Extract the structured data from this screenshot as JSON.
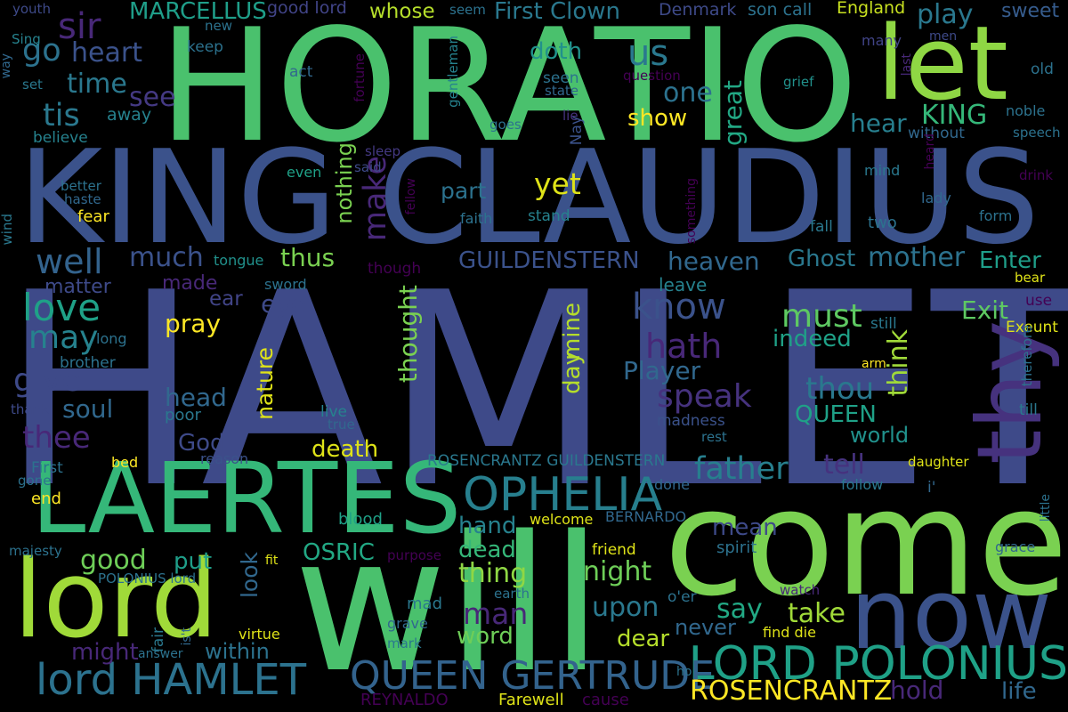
{
  "words": [
    {
      "text": "HAMLET",
      "color": "#3e4a89",
      "vertical": false
    },
    {
      "text": "HORATIO",
      "color": "#4ac16d",
      "vertical": false
    },
    {
      "text": "KING CLAUDIUS",
      "color": "#3b528b",
      "vertical": false
    },
    {
      "text": "will",
      "color": "#4ac16d",
      "vertical": false
    },
    {
      "text": "come",
      "color": "#7ad151",
      "vertical": false
    },
    {
      "text": "LAERTES",
      "color": "#35b779",
      "vertical": false
    },
    {
      "text": "lord",
      "color": "#a0da39",
      "vertical": false
    },
    {
      "text": "now",
      "color": "#3b528b",
      "vertical": false
    },
    {
      "text": "let",
      "color": "#8fd744",
      "vertical": false
    },
    {
      "text": "thy",
      "color": "#46327e",
      "vertical": true
    },
    {
      "text": "OPHELIA",
      "color": "#277f8e",
      "vertical": false
    },
    {
      "text": "LORD POLONIUS",
      "color": "#1fa187",
      "vertical": false
    },
    {
      "text": "lord HAMLET",
      "color": "#2c728e",
      "vertical": false
    },
    {
      "text": "QUEEN GERTRUDE",
      "color": "#33638d",
      "vertical": false
    },
    {
      "text": "ROSENCRANTZ",
      "color": "#fde725",
      "vertical": false
    },
    {
      "text": "GUILDENSTERN",
      "color": "#3b528b",
      "vertical": false
    },
    {
      "text": "ROSENCRANTZ GUILDENSTERN",
      "color": "#2a788e",
      "vertical": false
    },
    {
      "text": "MARCELLUS",
      "color": "#1f9e89",
      "vertical": false
    },
    {
      "text": "First Clown",
      "color": "#2a788e",
      "vertical": false
    },
    {
      "text": "good lord",
      "color": "#414487",
      "vertical": false
    },
    {
      "text": "whose",
      "color": "#b5de2b",
      "vertical": false
    },
    {
      "text": "Denmark",
      "color": "#3e4a89",
      "vertical": false
    },
    {
      "text": "son call",
      "color": "#2c728e",
      "vertical": false
    },
    {
      "text": "England",
      "color": "#c8e020",
      "vertical": false
    },
    {
      "text": "play",
      "color": "#2a788e",
      "vertical": false
    },
    {
      "text": "sweet",
      "color": "#365c8d",
      "vertical": false
    },
    {
      "text": "sir",
      "color": "#482878",
      "vertical": false
    },
    {
      "text": "go",
      "color": "#2c728e",
      "vertical": false
    },
    {
      "text": "heart",
      "color": "#3b528b",
      "vertical": false
    },
    {
      "text": "us",
      "color": "#2a788e",
      "vertical": false
    },
    {
      "text": "doth",
      "color": "#21918c",
      "vertical": false
    },
    {
      "text": "time",
      "color": "#2a788e",
      "vertical": false
    },
    {
      "text": "see",
      "color": "#443983",
      "vertical": false
    },
    {
      "text": "one",
      "color": "#2c728e",
      "vertical": false
    },
    {
      "text": "tis",
      "color": "#2a788e",
      "vertical": false
    },
    {
      "text": "great",
      "color": "#22a884",
      "vertical": true
    },
    {
      "text": "show",
      "color": "#fde725",
      "vertical": false
    },
    {
      "text": "KING",
      "color": "#35b779",
      "vertical": false
    },
    {
      "text": "hear",
      "color": "#277f8e",
      "vertical": false
    },
    {
      "text": "yet",
      "color": "#dfe318",
      "vertical": false
    },
    {
      "text": "make",
      "color": "#482878",
      "vertical": true
    },
    {
      "text": "part",
      "color": "#2c728e",
      "vertical": false
    },
    {
      "text": "well",
      "color": "#33638d",
      "vertical": false
    },
    {
      "text": "much",
      "color": "#3b528b",
      "vertical": false
    },
    {
      "text": "thus",
      "color": "#7ad151",
      "vertical": false
    },
    {
      "text": "heaven",
      "color": "#31688e",
      "vertical": false
    },
    {
      "text": "Ghost",
      "color": "#2a788e",
      "vertical": false
    },
    {
      "text": "mother",
      "color": "#2c728e",
      "vertical": false
    },
    {
      "text": "Enter",
      "color": "#1f9e89",
      "vertical": false
    },
    {
      "text": "love",
      "color": "#1fa187",
      "vertical": false
    },
    {
      "text": "matter",
      "color": "#3e4a89",
      "vertical": false
    },
    {
      "text": "made",
      "color": "#482878",
      "vertical": false
    },
    {
      "text": "ear",
      "color": "#414487",
      "vertical": false
    },
    {
      "text": "eye",
      "color": "#3e4a89",
      "vertical": false
    },
    {
      "text": "know",
      "color": "#3b528b",
      "vertical": false
    },
    {
      "text": "must",
      "color": "#5ec962",
      "vertical": false
    },
    {
      "text": "indeed",
      "color": "#1fa187",
      "vertical": false
    },
    {
      "text": "Exit",
      "color": "#5ec962",
      "vertical": false
    },
    {
      "text": "may",
      "color": "#26828e",
      "vertical": false
    },
    {
      "text": "pray",
      "color": "#fde725",
      "vertical": false
    },
    {
      "text": "hath",
      "color": "#482878",
      "vertical": false
    },
    {
      "text": "Player",
      "color": "#31688e",
      "vertical": false
    },
    {
      "text": "give",
      "color": "#3e4a89",
      "vertical": false
    },
    {
      "text": "speak",
      "color": "#46327e",
      "vertical": false
    },
    {
      "text": "thou",
      "color": "#2a788e",
      "vertical": false
    },
    {
      "text": "think",
      "color": "#a0da39",
      "vertical": true
    },
    {
      "text": "soul",
      "color": "#31688e",
      "vertical": false
    },
    {
      "text": "head",
      "color": "#31688e",
      "vertical": false
    },
    {
      "text": "QUEEN",
      "color": "#1fa187",
      "vertical": false
    },
    {
      "text": "thee",
      "color": "#482878",
      "vertical": false
    },
    {
      "text": "God",
      "color": "#3e4a89",
      "vertical": false
    },
    {
      "text": "death",
      "color": "#dfe318",
      "vertical": false
    },
    {
      "text": "world",
      "color": "#21918c",
      "vertical": false
    },
    {
      "text": "tell",
      "color": "#46327e",
      "vertical": false
    },
    {
      "text": "father",
      "color": "#277f8e",
      "vertical": false
    },
    {
      "text": "thought",
      "color": "#7ad151",
      "vertical": true
    },
    {
      "text": "nature",
      "color": "#dfe318",
      "vertical": true
    },
    {
      "text": "day",
      "color": "#b5de2b",
      "vertical": true
    },
    {
      "text": "mine",
      "color": "#b5de2b",
      "vertical": true
    },
    {
      "text": "nothing",
      "color": "#7ad151",
      "vertical": true
    },
    {
      "text": "hand",
      "color": "#26828e",
      "vertical": false
    },
    {
      "text": "mean",
      "color": "#3e4a89",
      "vertical": false
    },
    {
      "text": "dead",
      "color": "#35b779",
      "vertical": false
    },
    {
      "text": "good",
      "color": "#6ece58",
      "vertical": false
    },
    {
      "text": "put",
      "color": "#1f9e89",
      "vertical": false
    },
    {
      "text": "OSRIC",
      "color": "#22a884",
      "vertical": false
    },
    {
      "text": "thing",
      "color": "#8fd744",
      "vertical": false
    },
    {
      "text": "night",
      "color": "#6ece58",
      "vertical": false
    },
    {
      "text": "say",
      "color": "#22a884",
      "vertical": false
    },
    {
      "text": "take",
      "color": "#a0da39",
      "vertical": false
    },
    {
      "text": "look",
      "color": "#31688e",
      "vertical": true
    },
    {
      "text": "man",
      "color": "#482878",
      "vertical": false
    },
    {
      "text": "upon",
      "color": "#2a788e",
      "vertical": false
    },
    {
      "text": "word",
      "color": "#6ece58",
      "vertical": false
    },
    {
      "text": "never",
      "color": "#31688e",
      "vertical": false
    },
    {
      "text": "dear",
      "color": "#b5de2b",
      "vertical": false
    },
    {
      "text": "might",
      "color": "#482878",
      "vertical": false
    },
    {
      "text": "within",
      "color": "#2c728e",
      "vertical": false
    },
    {
      "text": "hold",
      "color": "#482878",
      "vertical": false
    },
    {
      "text": "life",
      "color": "#31688e",
      "vertical": false
    },
    {
      "text": "REYNALDO",
      "color": "#440154",
      "vertical": false
    },
    {
      "text": "Farewell",
      "color": "#dfe318",
      "vertical": false
    },
    {
      "text": "cause",
      "color": "#440154",
      "vertical": false
    },
    {
      "text": "youth",
      "color": "#3e4a89",
      "vertical": false
    },
    {
      "text": "Sing",
      "color": "#26828e",
      "vertical": false
    },
    {
      "text": "way",
      "color": "#31688e",
      "vertical": true
    },
    {
      "text": "set",
      "color": "#2a788e",
      "vertical": false
    },
    {
      "text": "new",
      "color": "#2c728e",
      "vertical": false
    },
    {
      "text": "keep",
      "color": "#2c728e",
      "vertical": false
    },
    {
      "text": "act",
      "color": "#31688e",
      "vertical": false
    },
    {
      "text": "fortune",
      "color": "#440154",
      "vertical": true
    },
    {
      "text": "seem",
      "color": "#2c728e",
      "vertical": false
    },
    {
      "text": "gentleman",
      "color": "#26828e",
      "vertical": true
    },
    {
      "text": "question",
      "color": "#440154",
      "vertical": false
    },
    {
      "text": "seen",
      "color": "#2c728e",
      "vertical": false
    },
    {
      "text": "state",
      "color": "#31688e",
      "vertical": false
    },
    {
      "text": "many",
      "color": "#414487",
      "vertical": false
    },
    {
      "text": "men",
      "color": "#3e4a89",
      "vertical": false
    },
    {
      "text": "last",
      "color": "#482878",
      "vertical": true
    },
    {
      "text": "old",
      "color": "#2c728e",
      "vertical": false
    },
    {
      "text": "grief",
      "color": "#21918c",
      "vertical": false
    },
    {
      "text": "noble",
      "color": "#2c728e",
      "vertical": false
    },
    {
      "text": "away",
      "color": "#26828e",
      "vertical": false
    },
    {
      "text": "lie",
      "color": "#46327e",
      "vertical": false
    },
    {
      "text": "goes",
      "color": "#2c728e",
      "vertical": false
    },
    {
      "text": "believe",
      "color": "#26828e",
      "vertical": false
    },
    {
      "text": "sleep",
      "color": "#443983",
      "vertical": false
    },
    {
      "text": "said",
      "color": "#3e4a89",
      "vertical": false
    },
    {
      "text": "even",
      "color": "#1fa187",
      "vertical": false
    },
    {
      "text": "Nay",
      "color": "#3b528b",
      "vertical": true
    },
    {
      "text": "without",
      "color": "#31688e",
      "vertical": false
    },
    {
      "text": "speech",
      "color": "#2c728e",
      "vertical": false
    },
    {
      "text": "heard",
      "color": "#440154",
      "vertical": true
    },
    {
      "text": "mind",
      "color": "#2a788e",
      "vertical": false
    },
    {
      "text": "better",
      "color": "#2c728e",
      "vertical": false
    },
    {
      "text": "haste",
      "color": "#31688e",
      "vertical": false
    },
    {
      "text": "fear",
      "color": "#fde725",
      "vertical": false
    },
    {
      "text": "fellow",
      "color": "#440154",
      "vertical": true
    },
    {
      "text": "faith",
      "color": "#2c728e",
      "vertical": false
    },
    {
      "text": "stand",
      "color": "#26828e",
      "vertical": false
    },
    {
      "text": "something",
      "color": "#440154",
      "vertical": true
    },
    {
      "text": "lady",
      "color": "#31688e",
      "vertical": false
    },
    {
      "text": "drink",
      "color": "#440154",
      "vertical": false
    },
    {
      "text": "wind",
      "color": "#2a788e",
      "vertical": true
    },
    {
      "text": "fall",
      "color": "#2a788e",
      "vertical": false
    },
    {
      "text": "two",
      "color": "#2c728e",
      "vertical": false
    },
    {
      "text": "form",
      "color": "#2c728e",
      "vertical": false
    },
    {
      "text": "tongue",
      "color": "#21918c",
      "vertical": false
    },
    {
      "text": "sword",
      "color": "#2c728e",
      "vertical": false
    },
    {
      "text": "though",
      "color": "#440154",
      "vertical": false
    },
    {
      "text": "leave",
      "color": "#26828e",
      "vertical": false
    },
    {
      "text": "bear",
      "color": "#dfe318",
      "vertical": false
    },
    {
      "text": "use",
      "color": "#440154",
      "vertical": false
    },
    {
      "text": "still",
      "color": "#2a788e",
      "vertical": false
    },
    {
      "text": "Exeunt",
      "color": "#dfe318",
      "vertical": false
    },
    {
      "text": "long",
      "color": "#2c728e",
      "vertical": false
    },
    {
      "text": "brother",
      "color": "#2c728e",
      "vertical": false
    },
    {
      "text": "arm",
      "color": "#fde725",
      "vertical": false
    },
    {
      "text": "therefore",
      "color": "#2c728e",
      "vertical": true
    },
    {
      "text": "thank",
      "color": "#3e4a89",
      "vertical": false
    },
    {
      "text": "poor",
      "color": "#2a788e",
      "vertical": false
    },
    {
      "text": "live",
      "color": "#26828e",
      "vertical": false
    },
    {
      "text": "true",
      "color": "#31688e",
      "vertical": false
    },
    {
      "text": "madness",
      "color": "#3b528b",
      "vertical": false
    },
    {
      "text": "rest",
      "color": "#2c728e",
      "vertical": false
    },
    {
      "text": "till",
      "color": "#2a788e",
      "vertical": false
    },
    {
      "text": "bed",
      "color": "#fde725",
      "vertical": false
    },
    {
      "text": "reason",
      "color": "#3b528b",
      "vertical": false
    },
    {
      "text": "daughter",
      "color": "#dfe318",
      "vertical": false
    },
    {
      "text": "little",
      "color": "#2c728e",
      "vertical": true
    },
    {
      "text": "First",
      "color": "#2c728e",
      "vertical": false
    },
    {
      "text": "gone",
      "color": "#2c728e",
      "vertical": false
    },
    {
      "text": "i'",
      "color": "#31688e",
      "vertical": false
    },
    {
      "text": "done",
      "color": "#31688e",
      "vertical": false
    },
    {
      "text": "follow",
      "color": "#2a788e",
      "vertical": false
    },
    {
      "text": "end",
      "color": "#fde725",
      "vertical": false
    },
    {
      "text": "blood",
      "color": "#1fa187",
      "vertical": false
    },
    {
      "text": "welcome",
      "color": "#dfe318",
      "vertical": false
    },
    {
      "text": "BERNARDO",
      "color": "#31688e",
      "vertical": false
    },
    {
      "text": "spirit",
      "color": "#2c728e",
      "vertical": false
    },
    {
      "text": "grace",
      "color": "#31688e",
      "vertical": false
    },
    {
      "text": "majesty",
      "color": "#2c728e",
      "vertical": false
    },
    {
      "text": "fit",
      "color": "#dfe318",
      "vertical": false
    },
    {
      "text": "friend",
      "color": "#dfe318",
      "vertical": false
    },
    {
      "text": "purpose",
      "color": "#440154",
      "vertical": false
    },
    {
      "text": "POLONIUS lord",
      "color": "#2c728e",
      "vertical": false
    },
    {
      "text": "earth",
      "color": "#2c728e",
      "vertical": false
    },
    {
      "text": "watch",
      "color": "#482878",
      "vertical": false
    },
    {
      "text": "o'er",
      "color": "#2c728e",
      "vertical": false
    },
    {
      "text": "mad",
      "color": "#2a788e",
      "vertical": false
    },
    {
      "text": "grave",
      "color": "#31688e",
      "vertical": false
    },
    {
      "text": "fair",
      "color": "#2a788e",
      "vertical": true
    },
    {
      "text": "is't",
      "color": "#31688e",
      "vertical": true
    },
    {
      "text": "virtue",
      "color": "#dfe318",
      "vertical": false
    },
    {
      "text": "find die",
      "color": "#dfe318",
      "vertical": false
    },
    {
      "text": "mark",
      "color": "#2a788e",
      "vertical": false
    },
    {
      "text": "answer",
      "color": "#2c728e",
      "vertical": false
    },
    {
      "text": "ho",
      "color": "#2c728e",
      "vertical": false
    }
  ]
}
